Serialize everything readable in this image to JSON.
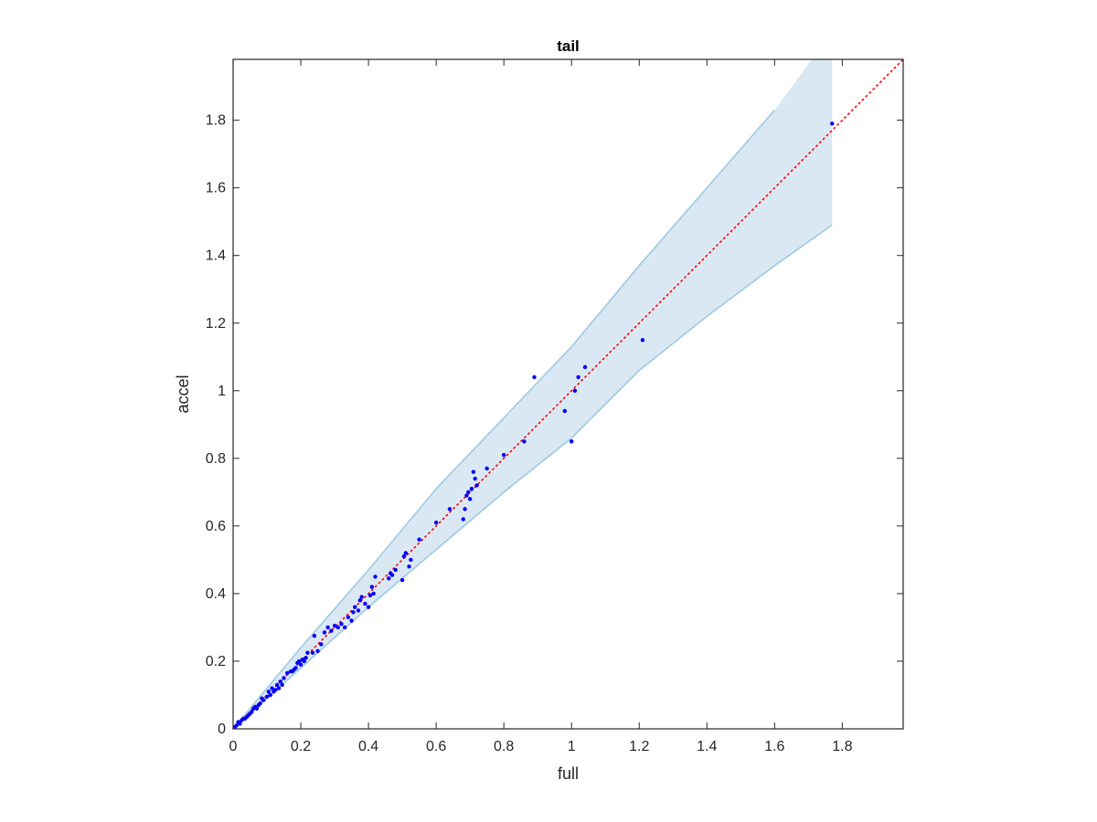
{
  "chart_data": {
    "type": "scatter",
    "title": "tail",
    "xlabel": "full",
    "ylabel": "accel",
    "xlim": [
      0,
      1.98
    ],
    "ylim": [
      0,
      1.98
    ],
    "xticks": [
      "0",
      "0.2",
      "0.4",
      "0.6",
      "0.8",
      "1",
      "1.2",
      "1.4",
      "1.6",
      "1.8"
    ],
    "yticks": [
      "0",
      "0.2",
      "0.4",
      "0.6",
      "0.8",
      "1",
      "1.2",
      "1.4",
      "1.6",
      "1.8"
    ],
    "grid": false,
    "reference_line": {
      "style": "dotted",
      "color": "#ff0000",
      "from": [
        0,
        0
      ],
      "to": [
        1.98,
        1.98
      ]
    },
    "confidence_band": {
      "color": "#9ecae1",
      "fill": "#dae8f4",
      "upper": [
        [
          0,
          0
        ],
        [
          0.2,
          0.24
        ],
        [
          0.4,
          0.47
        ],
        [
          0.6,
          0.71
        ],
        [
          0.8,
          0.92
        ],
        [
          1.0,
          1.13
        ],
        [
          1.2,
          1.37
        ],
        [
          1.4,
          1.6
        ],
        [
          1.6,
          1.83
        ],
        [
          1.71,
          1.98
        ],
        [
          1.77,
          1.98
        ]
      ],
      "lower": [
        [
          1.77,
          1.49
        ],
        [
          1.6,
          1.37
        ],
        [
          1.4,
          1.22
        ],
        [
          1.2,
          1.06
        ],
        [
          1.0,
          0.86
        ],
        [
          0.8,
          0.7
        ],
        [
          0.6,
          0.53
        ],
        [
          0.4,
          0.36
        ],
        [
          0.2,
          0.18
        ],
        [
          0,
          0
        ]
      ]
    },
    "series": [
      {
        "color": "#0000ff",
        "points": [
          [
            0.005,
            0.005
          ],
          [
            0.01,
            0.01
          ],
          [
            0.015,
            0.02
          ],
          [
            0.02,
            0.015
          ],
          [
            0.025,
            0.025
          ],
          [
            0.03,
            0.03
          ],
          [
            0.035,
            0.03
          ],
          [
            0.04,
            0.035
          ],
          [
            0.045,
            0.04
          ],
          [
            0.05,
            0.045
          ],
          [
            0.055,
            0.05
          ],
          [
            0.06,
            0.06
          ],
          [
            0.065,
            0.065
          ],
          [
            0.07,
            0.06
          ],
          [
            0.075,
            0.07
          ],
          [
            0.08,
            0.075
          ],
          [
            0.085,
            0.09
          ],
          [
            0.09,
            0.085
          ],
          [
            0.1,
            0.095
          ],
          [
            0.105,
            0.11
          ],
          [
            0.11,
            0.1
          ],
          [
            0.115,
            0.12
          ],
          [
            0.12,
            0.11
          ],
          [
            0.125,
            0.115
          ],
          [
            0.13,
            0.13
          ],
          [
            0.135,
            0.12
          ],
          [
            0.14,
            0.14
          ],
          [
            0.145,
            0.13
          ],
          [
            0.15,
            0.15
          ],
          [
            0.16,
            0.165
          ],
          [
            0.17,
            0.17
          ],
          [
            0.175,
            0.17
          ],
          [
            0.18,
            0.175
          ],
          [
            0.185,
            0.18
          ],
          [
            0.19,
            0.195
          ],
          [
            0.195,
            0.2
          ],
          [
            0.2,
            0.19
          ],
          [
            0.205,
            0.205
          ],
          [
            0.21,
            0.2
          ],
          [
            0.215,
            0.21
          ],
          [
            0.22,
            0.225
          ],
          [
            0.235,
            0.225
          ],
          [
            0.24,
            0.275
          ],
          [
            0.25,
            0.23
          ],
          [
            0.26,
            0.25
          ],
          [
            0.27,
            0.285
          ],
          [
            0.28,
            0.3
          ],
          [
            0.29,
            0.29
          ],
          [
            0.3,
            0.305
          ],
          [
            0.31,
            0.3
          ],
          [
            0.32,
            0.31
          ],
          [
            0.33,
            0.3
          ],
          [
            0.34,
            0.33
          ],
          [
            0.35,
            0.32
          ],
          [
            0.355,
            0.345
          ],
          [
            0.36,
            0.36
          ],
          [
            0.37,
            0.35
          ],
          [
            0.375,
            0.38
          ],
          [
            0.38,
            0.39
          ],
          [
            0.39,
            0.37
          ],
          [
            0.4,
            0.36
          ],
          [
            0.405,
            0.395
          ],
          [
            0.41,
            0.42
          ],
          [
            0.415,
            0.4
          ],
          [
            0.42,
            0.45
          ],
          [
            0.46,
            0.445
          ],
          [
            0.465,
            0.46
          ],
          [
            0.47,
            0.455
          ],
          [
            0.48,
            0.47
          ],
          [
            0.5,
            0.44
          ],
          [
            0.505,
            0.51
          ],
          [
            0.51,
            0.52
          ],
          [
            0.52,
            0.48
          ],
          [
            0.525,
            0.5
          ],
          [
            0.55,
            0.56
          ],
          [
            0.6,
            0.61
          ],
          [
            0.64,
            0.65
          ],
          [
            0.68,
            0.62
          ],
          [
            0.685,
            0.65
          ],
          [
            0.69,
            0.69
          ],
          [
            0.695,
            0.7
          ],
          [
            0.7,
            0.68
          ],
          [
            0.705,
            0.71
          ],
          [
            0.71,
            0.76
          ],
          [
            0.715,
            0.74
          ],
          [
            0.72,
            0.72
          ],
          [
            0.75,
            0.77
          ],
          [
            0.8,
            0.81
          ],
          [
            0.86,
            0.85
          ],
          [
            0.89,
            1.04
          ],
          [
            0.98,
            0.94
          ],
          [
            1.0,
            0.85
          ],
          [
            1.01,
            1.0
          ],
          [
            1.02,
            1.04
          ],
          [
            1.04,
            1.07
          ],
          [
            1.21,
            1.15
          ],
          [
            1.77,
            1.79
          ]
        ]
      }
    ]
  }
}
